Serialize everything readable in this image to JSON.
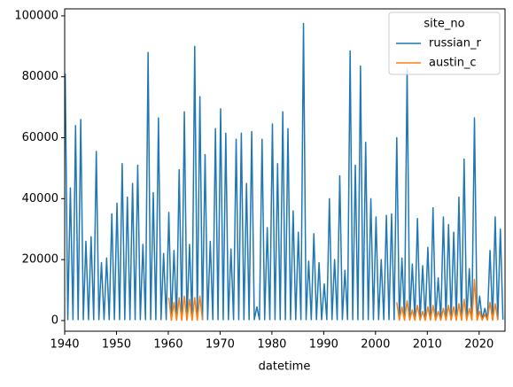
{
  "chart_data": {
    "type": "line",
    "x_label": "datetime",
    "xlim": [
      1940,
      2025
    ],
    "xticks": [
      1940,
      1950,
      1960,
      1970,
      1980,
      1990,
      2000,
      2010,
      2020
    ],
    "ylim": [
      -3500,
      102300
    ],
    "yticks": [
      0,
      20000,
      40000,
      60000,
      80000,
      100000
    ],
    "legend_title": "site_no",
    "legend_position": "upper right",
    "series": [
      {
        "name": "russian_r",
        "color": "#1f77b4",
        "x": [
          1940.1,
          1940.6,
          1941.1,
          1941.6,
          1942.1,
          1942.6,
          1943.1,
          1943.6,
          1944.1,
          1944.6,
          1945.1,
          1945.6,
          1946.1,
          1946.6,
          1947.1,
          1947.6,
          1948.1,
          1948.6,
          1949.1,
          1949.6,
          1950.1,
          1950.6,
          1951.1,
          1951.6,
          1952.1,
          1952.6,
          1953.1,
          1953.6,
          1954.1,
          1954.6,
          1955.1,
          1955.6,
          1956.1,
          1956.6,
          1957.1,
          1957.6,
          1958.1,
          1958.6,
          1959.1,
          1959.6,
          1960.1,
          1960.6,
          1961.1,
          1961.6,
          1962.1,
          1962.6,
          1963.1,
          1963.6,
          1964.1,
          1964.6,
          1965.1,
          1965.6,
          1966.1,
          1966.6,
          1967.1,
          1967.6,
          1968.1,
          1968.6,
          1969.1,
          1969.6,
          1970.1,
          1970.6,
          1971.1,
          1971.6,
          1972.1,
          1972.6,
          1973.1,
          1973.6,
          1974.1,
          1974.6,
          1975.1,
          1975.6,
          1976.1,
          1976.6,
          1977.1,
          1977.6,
          1978.1,
          1978.6,
          1979.1,
          1979.6,
          1980.1,
          1980.6,
          1981.1,
          1981.6,
          1982.1,
          1982.6,
          1983.1,
          1983.6,
          1984.1,
          1984.6,
          1985.1,
          1985.6,
          1986.1,
          1986.6,
          1987.1,
          1987.6,
          1988.1,
          1988.6,
          1989.1,
          1989.6,
          1990.1,
          1990.6,
          1991.1,
          1991.6,
          1992.1,
          1992.6,
          1993.1,
          1993.6,
          1994.1,
          1994.6,
          1995.1,
          1995.6,
          1996.1,
          1996.6,
          1997.1,
          1997.6,
          1998.1,
          1998.6,
          1999.1,
          1999.6,
          2000.1,
          2000.6,
          2001.1,
          2001.6,
          2002.1,
          2002.6,
          2003.1,
          2003.6,
          2004.1,
          2004.6,
          2005.1,
          2005.6,
          2006.1,
          2006.6,
          2007.1,
          2007.6,
          2008.1,
          2008.6,
          2009.1,
          2009.6,
          2010.1,
          2010.6,
          2011.1,
          2011.6,
          2012.1,
          2012.6,
          2013.1,
          2013.6,
          2014.1,
          2014.6,
          2015.1,
          2015.6,
          2016.1,
          2016.6,
          2017.1,
          2017.6,
          2018.1,
          2018.6,
          2019.1,
          2019.6,
          2020.1,
          2020.6,
          2021.1,
          2021.6,
          2022.1,
          2022.6,
          2023.1,
          2023.6,
          2024.1,
          2024.6
        ],
        "values": [
          81000,
          300,
          43500,
          300,
          64000,
          300,
          66000,
          300,
          26000,
          300,
          27500,
          300,
          55500,
          300,
          19000,
          300,
          20500,
          300,
          35000,
          300,
          38500,
          300,
          51500,
          300,
          40500,
          300,
          45000,
          300,
          51000,
          300,
          25000,
          300,
          88000,
          300,
          42000,
          300,
          66500,
          300,
          22000,
          300,
          35500,
          300,
          23000,
          300,
          49500,
          300,
          68500,
          300,
          25000,
          300,
          90000,
          300,
          73500,
          300,
          54500,
          300,
          26000,
          300,
          63000,
          300,
          69500,
          300,
          61500,
          300,
          23500,
          300,
          59500,
          300,
          61500,
          300,
          45000,
          300,
          62000,
          300,
          4500,
          300,
          59500,
          300,
          30500,
          300,
          64500,
          300,
          51500,
          300,
          68500,
          300,
          63000,
          300,
          36000,
          300,
          29000,
          300,
          97500,
          300,
          19500,
          300,
          28500,
          300,
          19000,
          300,
          12000,
          300,
          40000,
          300,
          20000,
          300,
          47500,
          300,
          16500,
          300,
          88500,
          300,
          51000,
          300,
          83500,
          300,
          58500,
          300,
          40000,
          300,
          34000,
          300,
          20000,
          300,
          34500,
          300,
          35000,
          300,
          60000,
          300,
          20500,
          300,
          82500,
          300,
          18500,
          300,
          33500,
          300,
          18000,
          300,
          24000,
          300,
          37000,
          300,
          14000,
          300,
          34000,
          300,
          31500,
          300,
          29000,
          300,
          40500,
          300,
          53000,
          300,
          17000,
          300,
          66500,
          300,
          8000,
          300,
          4000,
          300,
          23000,
          300,
          34000,
          300,
          30000,
          300
        ]
      },
      {
        "name": "austin_c",
        "color": "#ff7f0e",
        "x": [
          1960.1,
          1960.6,
          1961.1,
          1961.6,
          1962.1,
          1962.6,
          1963.1,
          1963.6,
          1964.1,
          1964.6,
          1965.1,
          1965.6,
          1966.1,
          1966.6,
          1985.0,
          2004.1,
          2004.6,
          2005.1,
          2005.6,
          2006.1,
          2006.6,
          2007.1,
          2007.6,
          2008.1,
          2008.6,
          2009.1,
          2009.6,
          2010.1,
          2010.6,
          2011.1,
          2011.6,
          2012.1,
          2012.6,
          2013.1,
          2013.6,
          2014.1,
          2014.6,
          2015.1,
          2015.6,
          2016.1,
          2016.6,
          2017.1,
          2017.6,
          2018.1,
          2018.6,
          2019.1,
          2019.6,
          2020.1,
          2020.6,
          2021.1,
          2021.6,
          2022.1,
          2022.6,
          2023.1,
          2023.6
        ],
        "values": [
          7500,
          100,
          6000,
          100,
          7500,
          100,
          8000,
          100,
          7000,
          100,
          7500,
          100,
          8000,
          100,
          null,
          6000,
          100,
          4500,
          100,
          6500,
          100,
          3500,
          100,
          5000,
          100,
          3000,
          100,
          4500,
          100,
          5000,
          100,
          3000,
          100,
          4000,
          100,
          5000,
          100,
          4500,
          100,
          5500,
          100,
          7000,
          100,
          4000,
          100,
          13500,
          100,
          3000,
          100,
          2000,
          100,
          6000,
          100,
          5500,
          100
        ]
      }
    ]
  }
}
